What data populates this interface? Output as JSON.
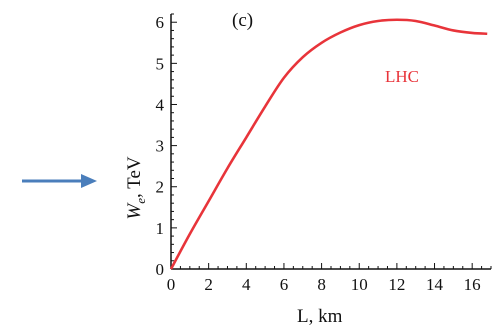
{
  "chart_data": {
    "type": "line",
    "panel_label": "(c)",
    "xlabel": "L, km",
    "ylabel_main": "W",
    "ylabel_sub": "e",
    "ylabel_rest": ", TeV",
    "annotation": "LHC",
    "xlim": [
      0,
      17
    ],
    "ylim": [
      0,
      6.2
    ],
    "xticks": [
      0,
      2,
      4,
      6,
      8,
      10,
      12,
      14,
      16
    ],
    "yticks": [
      0,
      1,
      2,
      3,
      4,
      5,
      6
    ],
    "grid": false,
    "series": [
      {
        "color": "#e8343a",
        "x": [
          0,
          1,
          2,
          3,
          4,
          5,
          6,
          7,
          8,
          9,
          10,
          11,
          12,
          13,
          14,
          15,
          16,
          16.8
        ],
        "y": [
          0,
          0.85,
          1.65,
          2.45,
          3.2,
          3.95,
          4.65,
          5.15,
          5.5,
          5.75,
          5.93,
          6.03,
          6.06,
          6.03,
          5.92,
          5.8,
          5.74,
          5.72
        ]
      }
    ],
    "arrow_color": "#4a7ebb"
  }
}
